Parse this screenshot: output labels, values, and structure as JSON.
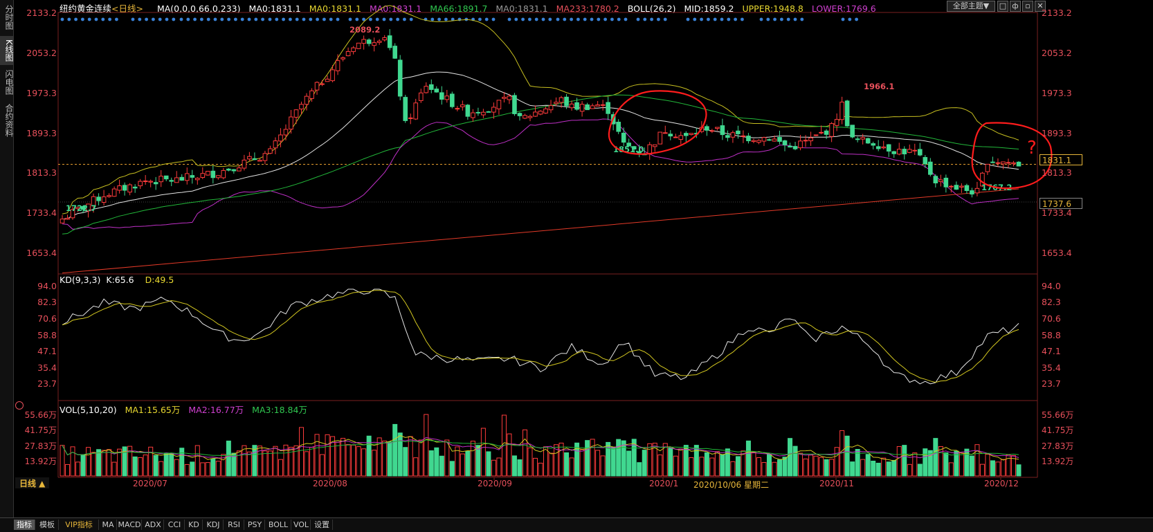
{
  "sidebar": {
    "items": [
      "分时图",
      "K线图",
      "闪电图",
      "合约资料"
    ],
    "active": 1
  },
  "header": {
    "title": "纽约黄金连续",
    "period": "<日线>",
    "ma_label": "MA(0,0,0,66,0,233)",
    "ma_values": [
      "MA0:1831.1",
      "MA0:1831.1",
      "MA0:1831.1",
      "MA66:1891.7",
      "MA0:1831.1",
      "MA233:1780.2"
    ],
    "boll_label": "BOLL(26,2)",
    "boll_mid": "MID:1859.2",
    "boll_upper": "UPPER:1948.8",
    "boll_lower": "LOWER:1769.6",
    "theme_button": "全部主题▼"
  },
  "price_axis": [
    "2133.2",
    "2053.2",
    "1973.3",
    "1893.3",
    "1813.3",
    "1733.4",
    "1653.4"
  ],
  "price_labels": {
    "current": "1831.1",
    "extra": "1737.6"
  },
  "annotations": {
    "high": "2089.2",
    "low1": "1722.7",
    "low2": "1851.0",
    "peak2": "1966.1",
    "low3": "1767.2"
  },
  "kd": {
    "label": "KD(9,3,3)",
    "k": "K:65.6",
    "d": "D:49.5",
    "axis": [
      "94.0",
      "82.3",
      "70.6",
      "58.8",
      "47.1",
      "35.4",
      "23.7"
    ]
  },
  "vol": {
    "label": "VOL(5,10,20)",
    "ma1": "MA1:15.65万",
    "ma2": "MA2:16.77万",
    "ma3": "MA3:18.84万",
    "axis": [
      "55.66万",
      "41.75万",
      "27.83万",
      "13.92万"
    ]
  },
  "dates": [
    "2020/07",
    "2020/08",
    "2020/09",
    "2020/1",
    "2020/10/06 星期二",
    "2020/11",
    "2020/12"
  ],
  "period_tab": "日线 ▲",
  "bottom_tabs": [
    "指标",
    "模板",
    "VIP指标",
    "MA",
    "MACD",
    "ADX",
    "CCI",
    "KD",
    "KDJ",
    "RSI",
    "PSY",
    "BOLL",
    "VOL",
    "设置"
  ],
  "question_mark": "?",
  "colors": {
    "up": "#ff3c3c",
    "down": "#40d890",
    "ma66": "#22b83a",
    "ma233": "#e43a28",
    "boll_mid": "#e6e6e6",
    "boll_upper": "#c8c020",
    "boll_lower": "#c030c8",
    "axis_text": "#e8505b",
    "dots": "#3a82d8"
  }
}
